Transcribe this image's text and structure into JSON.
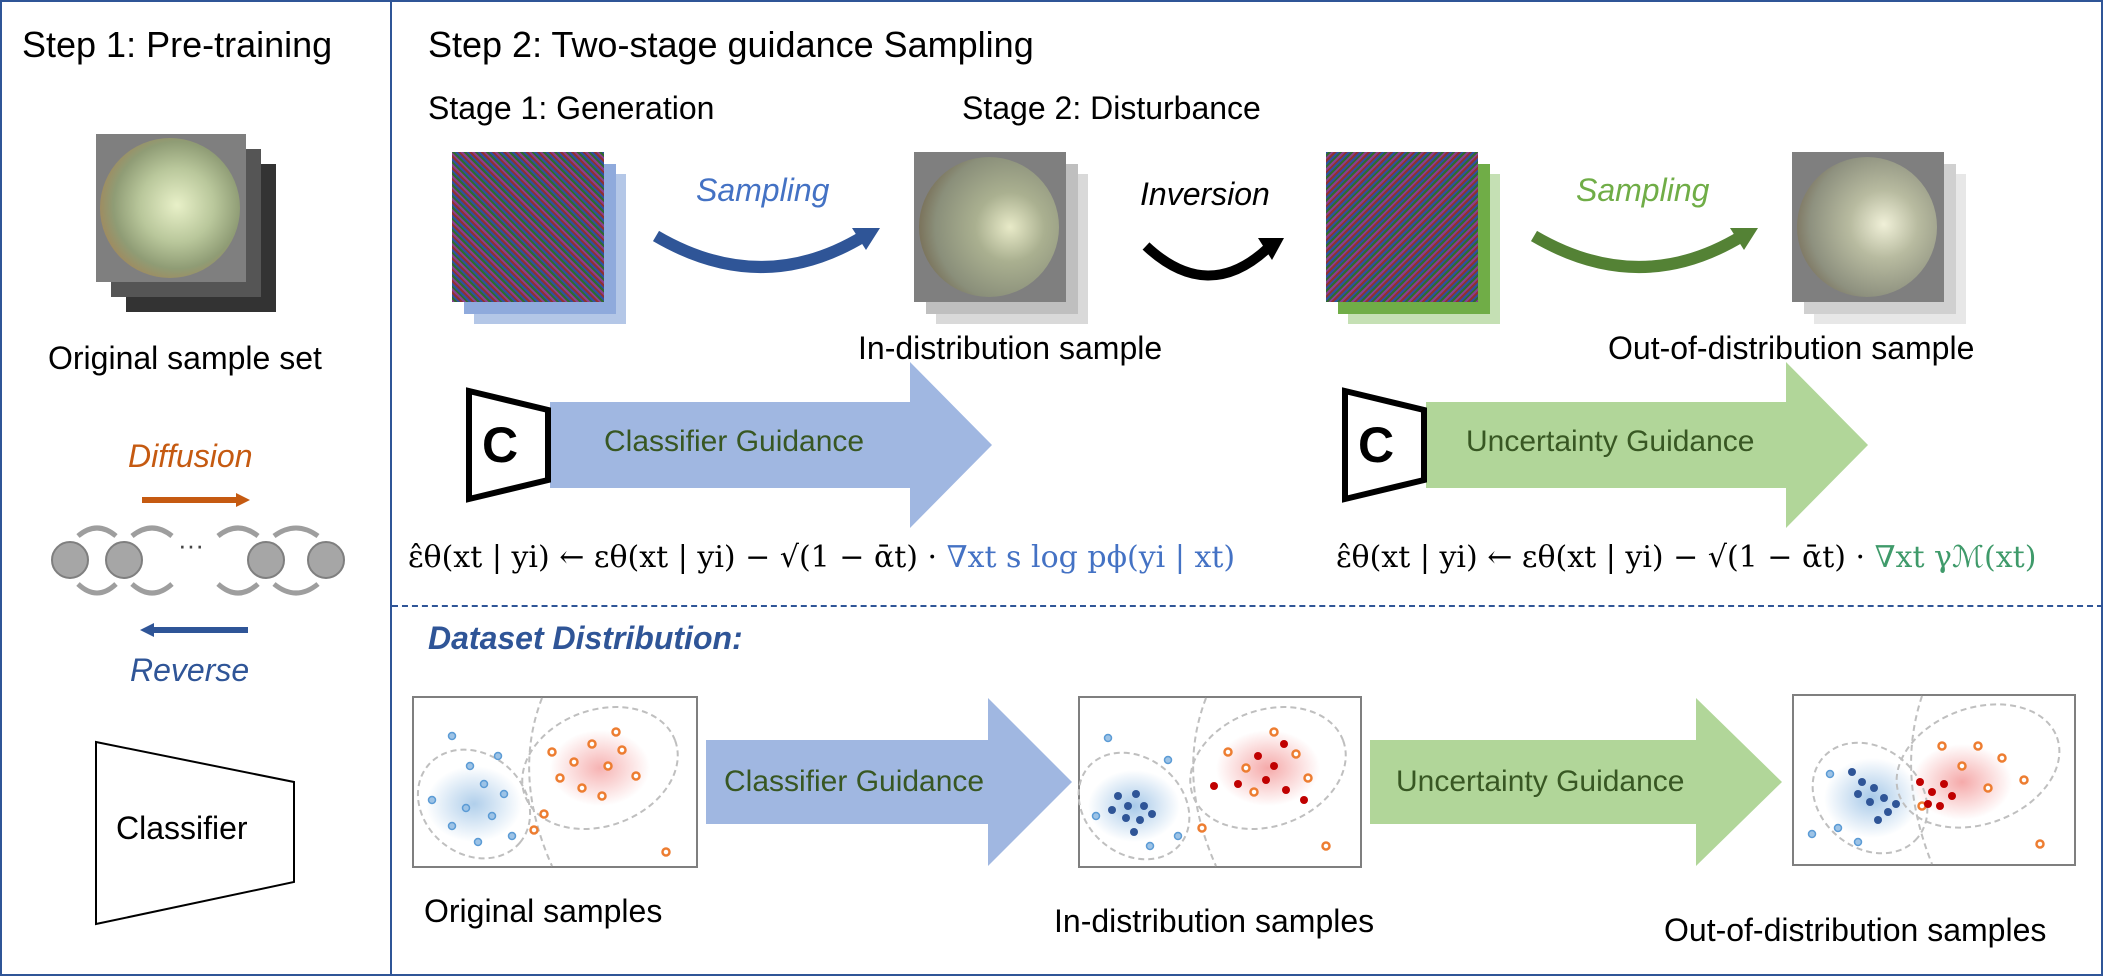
{
  "step1": {
    "title": "Step 1: Pre-training",
    "sample_set_caption": "Original sample set",
    "diffusion_label": "Diffusion",
    "reverse_label": "Reverse",
    "ellipsis": "···",
    "classifier_label": "Classifier"
  },
  "step2": {
    "title": "Step 2: Two-stage guidance Sampling",
    "stage1_label": "Stage 1: Generation",
    "stage2_label": "Stage 2: Disturbance",
    "sampling_blue": "Sampling",
    "inversion": "Inversion",
    "sampling_green": "Sampling",
    "in_dist_caption": "In-distribution sample",
    "ood_caption": "Out-of-distribution sample",
    "classifier_c": "C",
    "classifier_guidance": "Classifier Guidance",
    "uncertainty_c": "C",
    "uncertainty_guidance": "Uncertainty Guidance",
    "formula_left_main": "ε̂θ(xt | yi) ← εθ(xt | yi) − √(1 − ᾱt) ·",
    "formula_left_tail": "∇xt s log pϕ(yi | xt)",
    "formula_right_main": "ε̂θ(xt | yi) ← εθ(xt | yi) − √(1 − ᾱt) ·",
    "formula_right_tail": "∇xt γℳ(xt)"
  },
  "dataset": {
    "title": "Dataset Distribution:",
    "arrow1": "Classifier Guidance",
    "arrow2": "Uncertainty Guidance",
    "cap1": "Original samples",
    "cap2": "In-distribution samples",
    "cap3": "Out-of-distribution samples"
  },
  "colors": {
    "frame": "#2f5597",
    "blue_arrow": "#8faadc",
    "green_arrow": "#a9d18e",
    "blue_text": "#4472c4",
    "green_text": "#70ad47",
    "orange_text": "#c55a11",
    "dark_blue_text": "#2f5597",
    "guidance_text": "#385723"
  }
}
